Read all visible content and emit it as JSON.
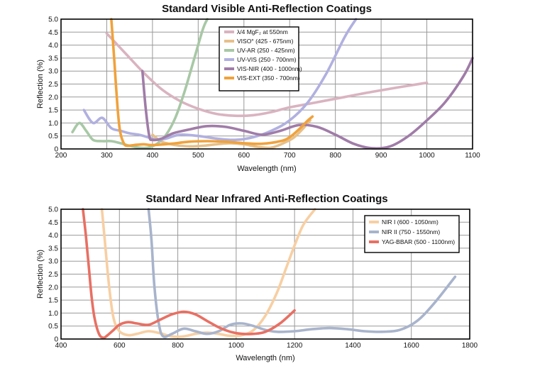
{
  "chart_data": [
    {
      "type": "line",
      "title": "Standard Visible Anti-Reflection Coatings",
      "xlabel": "Wavelength (nm)",
      "ylabel": "Reflection (%)",
      "xlim": [
        200,
        1100
      ],
      "ylim": [
        0,
        5.0
      ],
      "x_ticks": [
        200,
        300,
        400,
        500,
        600,
        700,
        800,
        900,
        1000,
        1100
      ],
      "x_tick_labels": [
        "200",
        "300",
        "400",
        "500",
        "600",
        "700",
        "800",
        "900",
        "1000",
        "1100"
      ],
      "y_ticks": [
        0,
        0.5,
        1.0,
        1.5,
        2.0,
        2.5,
        3.0,
        3.5,
        4.0,
        4.5,
        5.0
      ],
      "y_tick_labels": [
        "0",
        "0.5",
        "1.0",
        "1.5",
        "2.0",
        "2.5",
        "3.0",
        "3.5",
        "4.0",
        "4.5",
        "5.0"
      ],
      "grid": true,
      "legend_position": "top-center",
      "series": [
        {
          "name": "λ/4 MgF₂ at 550nm",
          "color": "#d9b3c0",
          "x": [
            300,
            340,
            380,
            420,
            460,
            500,
            540,
            580,
            620,
            660,
            700,
            760,
            820,
            880,
            940,
            1000
          ],
          "y": [
            4.45,
            3.7,
            2.95,
            2.3,
            1.85,
            1.55,
            1.35,
            1.28,
            1.3,
            1.42,
            1.6,
            1.8,
            2.0,
            2.2,
            2.38,
            2.55
          ]
        },
        {
          "name": "VISO° (425 - 675nm)",
          "color": "#e6c08a",
          "x": [
            400,
            420,
            450,
            480,
            510,
            540,
            570,
            600,
            630,
            660,
            690,
            710,
            730,
            745
          ],
          "y": [
            0.55,
            0.28,
            0.15,
            0.1,
            0.12,
            0.18,
            0.22,
            0.18,
            0.08,
            0.05,
            0.25,
            0.45,
            0.8,
            1.1
          ]
        },
        {
          "name": "UV-AR (250 - 425nm)",
          "color": "#a8c8a5",
          "x": [
            225,
            240,
            255,
            270,
            290,
            310,
            330,
            350,
            370,
            390,
            410,
            430,
            450,
            470,
            490,
            510,
            520
          ],
          "y": [
            0.65,
            1.0,
            0.7,
            0.35,
            0.3,
            0.3,
            0.22,
            0.12,
            0.05,
            0.05,
            0.2,
            0.55,
            1.2,
            2.2,
            3.4,
            4.6,
            5.0
          ]
        },
        {
          "name": "UV-VIS (250 - 700nm)",
          "color": "#b0b0e0",
          "x": [
            250,
            270,
            290,
            310,
            330,
            350,
            370,
            390,
            410,
            430,
            460,
            500,
            540,
            580,
            620,
            660,
            700,
            740,
            780,
            820,
            845
          ],
          "y": [
            1.5,
            1.0,
            1.2,
            0.8,
            0.7,
            0.6,
            0.55,
            0.45,
            0.35,
            0.4,
            0.55,
            0.5,
            0.4,
            0.35,
            0.45,
            0.7,
            1.1,
            1.8,
            2.9,
            4.3,
            5.0
          ]
        },
        {
          "name": "VIS-NIR (400 - 1000nm)",
          "color": "#a07ca8",
          "x": [
            378,
            385,
            393,
            400,
            420,
            445,
            480,
            520,
            560,
            600,
            640,
            680,
            720,
            760,
            800,
            840,
            880,
            920,
            960,
            1000,
            1040,
            1080,
            1100
          ],
          "y": [
            3.0,
            1.6,
            0.5,
            0.35,
            0.4,
            0.6,
            0.75,
            0.88,
            0.85,
            0.7,
            0.55,
            0.7,
            0.92,
            0.85,
            0.55,
            0.2,
            0.03,
            0.1,
            0.5,
            1.1,
            1.8,
            2.8,
            3.5
          ]
        },
        {
          "name": "VIS-EXT (350 - 700nm)",
          "color": "#f0a23c",
          "x": [
            310,
            315,
            320,
            325,
            330,
            338,
            345,
            360,
            380,
            400,
            440,
            480,
            520,
            560,
            600,
            640,
            680,
            700,
            720,
            740,
            750
          ],
          "y": [
            5.0,
            3.8,
            2.5,
            1.3,
            0.6,
            0.2,
            0.12,
            0.15,
            0.18,
            0.15,
            0.2,
            0.28,
            0.3,
            0.28,
            0.22,
            0.2,
            0.3,
            0.45,
            0.75,
            1.1,
            1.25
          ]
        }
      ]
    },
    {
      "type": "line",
      "title": "Standard Near Infrared Anti-Reflection Coatings",
      "xlabel": "Wavelength (nm)",
      "ylabel": "Reflection (%)",
      "xlim": [
        400,
        1800
      ],
      "ylim": [
        0,
        5.0
      ],
      "x_ticks": [
        400,
        600,
        800,
        1000,
        1200,
        1400,
        1600,
        1800
      ],
      "x_tick_labels": [
        "400",
        "600",
        "800",
        "1000",
        "1200",
        "1400",
        "1600",
        "1800"
      ],
      "y_ticks": [
        0,
        0.5,
        1.0,
        1.5,
        2.0,
        2.5,
        3.0,
        3.5,
        4.0,
        4.5,
        5.0
      ],
      "y_tick_labels": [
        "0",
        "0.5",
        "1.0",
        "1.5",
        "2.0",
        "2.5",
        "3.0",
        "3.5",
        "4.0",
        "4.5",
        "5.0"
      ],
      "grid": true,
      "legend_position": "top-right",
      "series": [
        {
          "name": "NIR I (600 - 1050nm)",
          "color": "#f7cfa3",
          "x": [
            540,
            550,
            565,
            580,
            600,
            630,
            660,
            700,
            740,
            780,
            820,
            860,
            900,
            940,
            980,
            1020,
            1060,
            1100,
            1140,
            1170,
            1200,
            1230,
            1270
          ],
          "y": [
            5.0,
            3.8,
            2.0,
            0.8,
            0.3,
            0.15,
            0.2,
            0.3,
            0.22,
            0.1,
            0.1,
            0.2,
            0.25,
            0.2,
            0.12,
            0.15,
            0.35,
            0.9,
            1.8,
            2.7,
            3.6,
            4.4,
            5.0
          ]
        },
        {
          "name": "NIR II (750 - 1550nm)",
          "color": "#a8b4cc",
          "x": [
            700,
            710,
            720,
            735,
            750,
            780,
            820,
            860,
            900,
            940,
            980,
            1020,
            1060,
            1100,
            1140,
            1200,
            1260,
            1320,
            1380,
            1440,
            1500,
            1560,
            1620,
            1680,
            1750
          ],
          "y": [
            5.0,
            3.8,
            2.0,
            0.6,
            0.1,
            0.2,
            0.4,
            0.3,
            0.2,
            0.3,
            0.55,
            0.6,
            0.5,
            0.35,
            0.28,
            0.3,
            0.38,
            0.42,
            0.38,
            0.3,
            0.28,
            0.35,
            0.7,
            1.4,
            2.4
          ]
        },
        {
          "name": "YAG-BBAR (500 - 1100nm)",
          "color": "#e87063",
          "x": [
            475,
            485,
            495,
            505,
            515,
            530,
            545,
            560,
            580,
            600,
            630,
            660,
            700,
            740,
            780,
            820,
            860,
            900,
            940,
            980,
            1020,
            1060,
            1100,
            1150,
            1200
          ],
          "y": [
            5.0,
            4.0,
            2.8,
            1.6,
            0.8,
            0.2,
            0.05,
            0.15,
            0.35,
            0.55,
            0.65,
            0.6,
            0.55,
            0.75,
            0.95,
            1.05,
            0.95,
            0.7,
            0.45,
            0.28,
            0.2,
            0.2,
            0.28,
            0.6,
            1.1
          ]
        }
      ]
    }
  ]
}
